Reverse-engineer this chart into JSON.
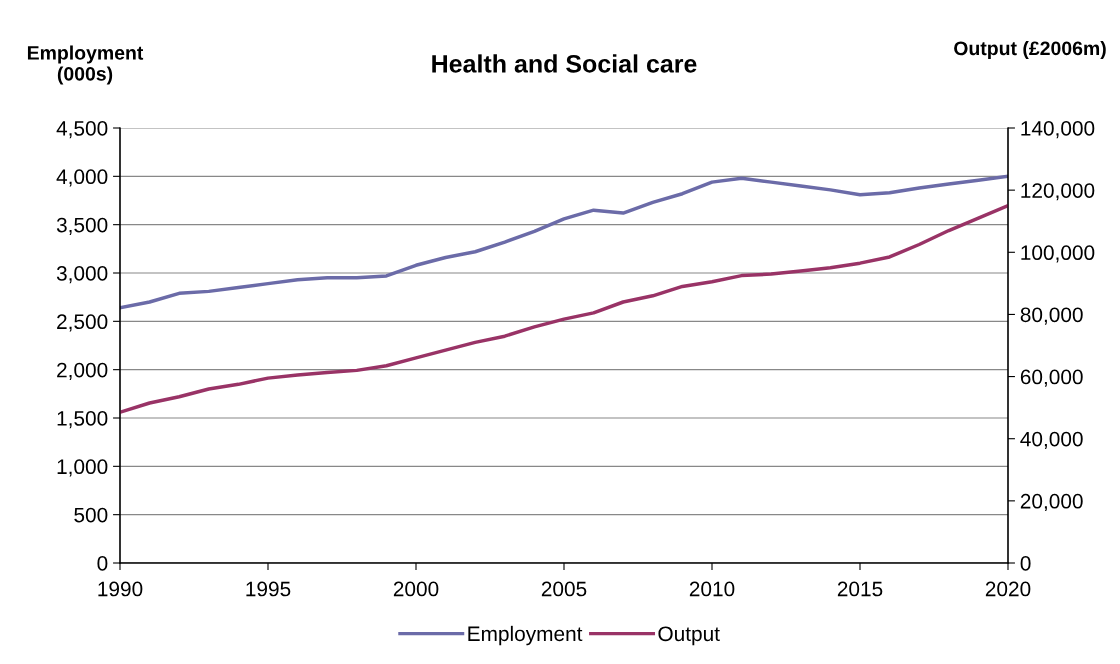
{
  "chart_data": {
    "type": "line",
    "title": "Health and Social care",
    "ylabel": "Employment\n(000s)",
    "y2label": "Output (£2006m)",
    "x": [
      1990,
      1991,
      1992,
      1993,
      1994,
      1995,
      1996,
      1997,
      1998,
      1999,
      2000,
      2001,
      2002,
      2003,
      2004,
      2005,
      2006,
      2007,
      2008,
      2009,
      2010,
      2011,
      2012,
      2013,
      2014,
      2015,
      2016,
      2017,
      2018,
      2019,
      2020
    ],
    "series": [
      {
        "name": "Employment",
        "color": "#6b6ba8",
        "values": [
          2640,
          2700,
          2790,
          2810,
          2850,
          2890,
          2930,
          2950,
          2950,
          2970,
          3080,
          3160,
          3220,
          3320,
          3430,
          3560,
          3650,
          3620,
          3730,
          3820,
          3940,
          3980,
          3940,
          3900,
          3860,
          3810,
          3830,
          3880,
          3920,
          3960,
          4000
        ]
      },
      {
        "name": "Output",
        "color": "#993366",
        "axis": "y2",
        "values": [
          48500,
          51500,
          53500,
          56000,
          57500,
          59500,
          60500,
          61300,
          62000,
          63500,
          66000,
          68500,
          71000,
          73000,
          76000,
          78500,
          80500,
          84000,
          86000,
          89000,
          90500,
          92500,
          93000,
          94000,
          95000,
          96500,
          98500,
          102500,
          107000,
          111000,
          115000
        ]
      }
    ],
    "xlim": [
      1990,
      2020
    ],
    "xticks": [
      1990,
      1995,
      2000,
      2005,
      2010,
      2015,
      2020
    ],
    "ylim": [
      0,
      4500
    ],
    "yticks": [
      {
        "value": 0,
        "label": "0"
      },
      {
        "value": 500,
        "label": "500"
      },
      {
        "value": 1000,
        "label": "1,000"
      },
      {
        "value": 1500,
        "label": "1,500"
      },
      {
        "value": 2000,
        "label": "2,000"
      },
      {
        "value": 2500,
        "label": "2,500"
      },
      {
        "value": 3000,
        "label": "3,000"
      },
      {
        "value": 3500,
        "label": "3,500"
      },
      {
        "value": 4000,
        "label": "4,000"
      },
      {
        "value": 4500,
        "label": "4,500"
      }
    ],
    "y2lim": [
      0,
      140000
    ],
    "y2ticks": [
      {
        "value": 0,
        "label": "0"
      },
      {
        "value": 20000,
        "label": "20,000"
      },
      {
        "value": 40000,
        "label": "40,000"
      },
      {
        "value": 60000,
        "label": "60,000"
      },
      {
        "value": 80000,
        "label": "80,000"
      },
      {
        "value": 100000,
        "label": "100,000"
      },
      {
        "value": 120000,
        "label": "120,000"
      },
      {
        "value": 140000,
        "label": "140,000"
      }
    ],
    "grid": "y",
    "legend": "bottom",
    "marker": "none",
    "line_style": "solid"
  }
}
